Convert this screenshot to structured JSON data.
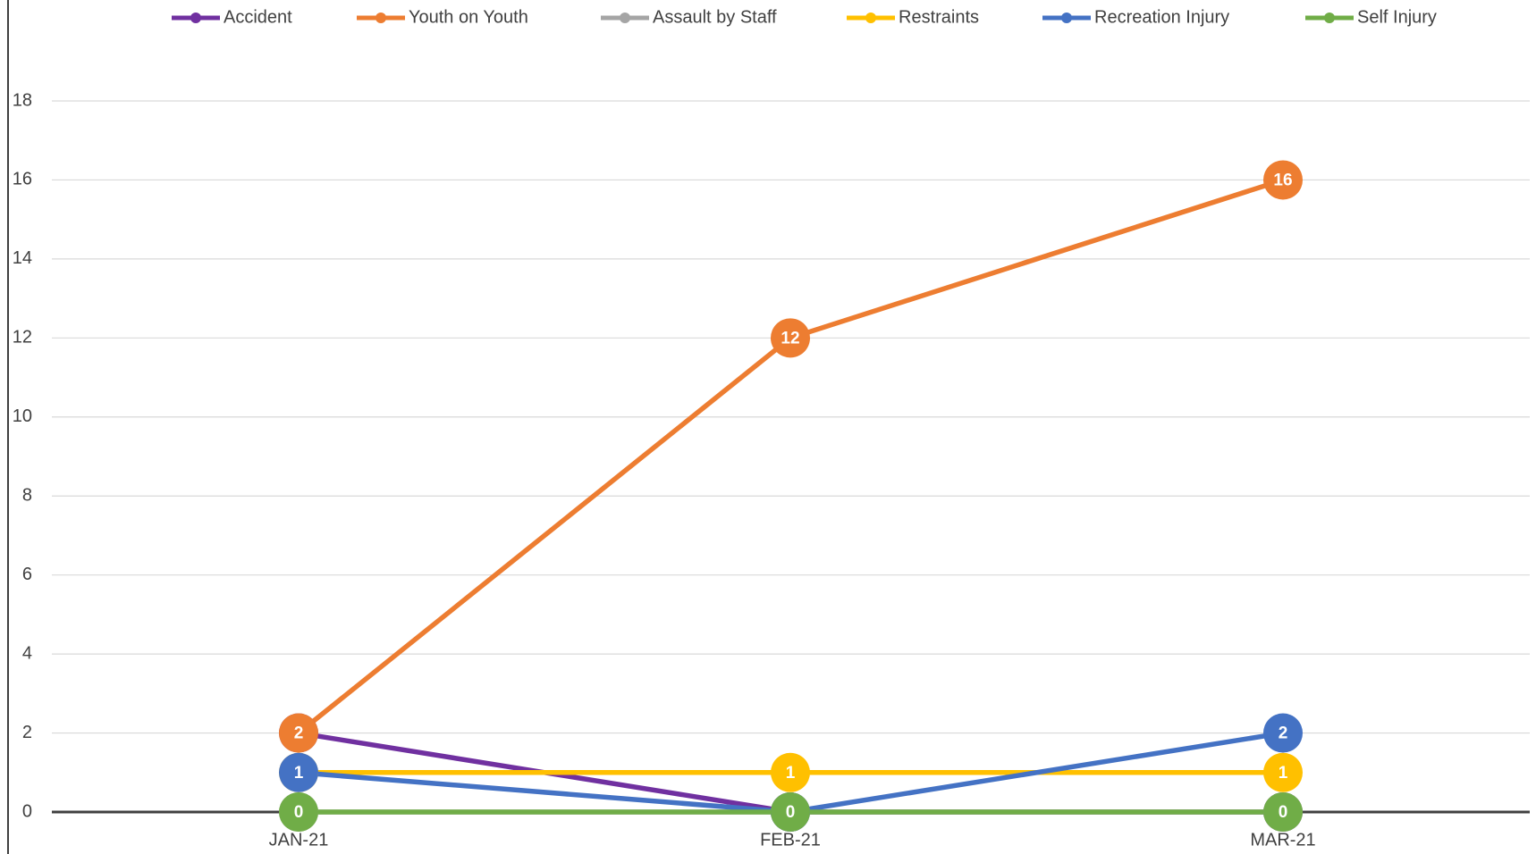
{
  "chart_data": {
    "type": "line",
    "categories": [
      "JAN-21",
      "FEB-21",
      "MAR-21"
    ],
    "series": [
      {
        "name": "Accident",
        "color": "#7030a0",
        "values": [
          2,
          0,
          0
        ]
      },
      {
        "name": "Youth on Youth",
        "color": "#ed7d31",
        "values": [
          2,
          12,
          16
        ]
      },
      {
        "name": "Assault by Staff",
        "color": "#a5a5a5",
        "values": [
          0,
          0,
          0
        ]
      },
      {
        "name": "Restraints",
        "color": "#ffc000",
        "values": [
          1,
          1,
          1
        ]
      },
      {
        "name": "Recreation Injury",
        "color": "#4472c4",
        "values": [
          1,
          0,
          2
        ]
      },
      {
        "name": "Self Injury",
        "color": "#70ad47",
        "values": [
          0,
          0,
          0
        ]
      }
    ],
    "ylim": [
      0,
      18
    ],
    "yticks": [
      0,
      2,
      4,
      6,
      8,
      10,
      12,
      14,
      16,
      18
    ],
    "grid": true,
    "legend": "top"
  }
}
